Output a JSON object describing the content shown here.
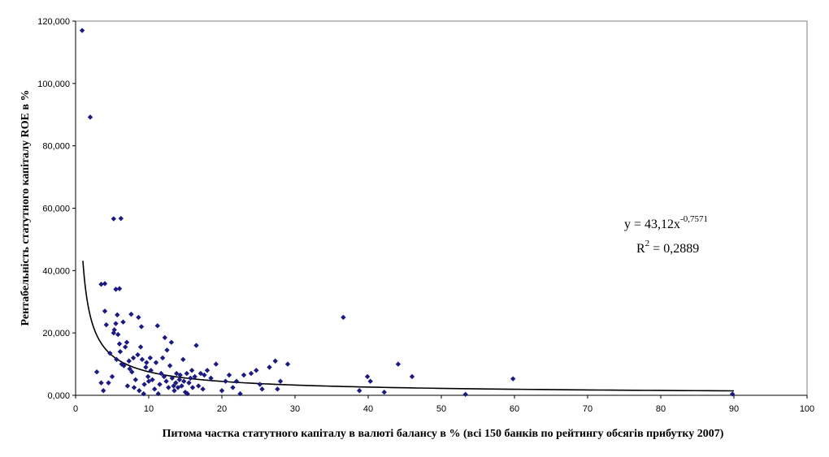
{
  "chart_data": {
    "type": "scatter",
    "title": "",
    "xlabel": "Питома частка статутного капіталу в валюті балансу в % (всі 150 банків по рейтингу обсягів прибутку 2007)",
    "ylabel": "Рентабельність статутного капіталу ROE в %",
    "xlim": [
      0,
      100
    ],
    "ylim": [
      0,
      120000
    ],
    "x_ticks": [
      "0",
      "10",
      "20",
      "30",
      "40",
      "50",
      "60",
      "70",
      "80",
      "90",
      "100"
    ],
    "y_ticks": [
      "0,000",
      "20,000",
      "40,000",
      "60,000",
      "80,000",
      "100,000",
      "120,000"
    ],
    "grid": false,
    "legend": "none",
    "colors": {
      "points": "#1a1a80",
      "trendline": "#000000",
      "axis": "#808080"
    },
    "trendline": {
      "type": "power",
      "coefficient": 43120,
      "exponent": -0.7571,
      "x_start": 1,
      "x_end": 90,
      "equation_main": "y = 43,12x",
      "equation_exponent": "-0,7571",
      "r2_main": "R",
      "r2_exp": "2",
      "r2_value": " = 0,2889"
    },
    "points": [
      [
        0.9,
        117000
      ],
      [
        2.0,
        89200
      ],
      [
        3.5,
        35600
      ],
      [
        4.0,
        35800
      ],
      [
        5.5,
        34000
      ],
      [
        6.0,
        34200
      ],
      [
        5.2,
        56600
      ],
      [
        6.2,
        56700
      ],
      [
        2.9,
        7500
      ],
      [
        3.5,
        4000
      ],
      [
        3.8,
        1500
      ],
      [
        4.0,
        27000
      ],
      [
        4.2,
        22600
      ],
      [
        4.5,
        4000
      ],
      [
        4.7,
        13500
      ],
      [
        5.0,
        6000
      ],
      [
        5.2,
        20000
      ],
      [
        5.3,
        21000
      ],
      [
        5.5,
        23000
      ],
      [
        5.6,
        11500
      ],
      [
        5.7,
        25800
      ],
      [
        5.8,
        19500
      ],
      [
        6.0,
        16500
      ],
      [
        6.1,
        14000
      ],
      [
        6.3,
        10000
      ],
      [
        6.5,
        23500
      ],
      [
        6.6,
        9500
      ],
      [
        6.8,
        15500
      ],
      [
        7.0,
        17000
      ],
      [
        7.1,
        3000
      ],
      [
        7.3,
        11000
      ],
      [
        7.4,
        8500
      ],
      [
        7.6,
        26000
      ],
      [
        7.7,
        7500
      ],
      [
        7.9,
        12000
      ],
      [
        8.0,
        2500
      ],
      [
        8.2,
        5000
      ],
      [
        8.5,
        13000
      ],
      [
        8.6,
        25000
      ],
      [
        8.7,
        1500
      ],
      [
        8.9,
        15500
      ],
      [
        9.0,
        22000
      ],
      [
        9.1,
        11500
      ],
      [
        9.3,
        500
      ],
      [
        9.4,
        3500
      ],
      [
        9.6,
        9000
      ],
      [
        9.7,
        10500
      ],
      [
        9.9,
        6000
      ],
      [
        10.0,
        4500
      ],
      [
        10.2,
        12000
      ],
      [
        10.3,
        8000
      ],
      [
        10.5,
        5000
      ],
      [
        10.8,
        2000
      ],
      [
        11.0,
        10500
      ],
      [
        11.2,
        22300
      ],
      [
        11.3,
        500
      ],
      [
        11.5,
        3500
      ],
      [
        11.7,
        7000
      ],
      [
        11.9,
        12000
      ],
      [
        12.1,
        6000
      ],
      [
        12.2,
        18500
      ],
      [
        12.4,
        4500
      ],
      [
        12.5,
        14500
      ],
      [
        12.7,
        2500
      ],
      [
        12.9,
        9500
      ],
      [
        13.1,
        17000
      ],
      [
        13.2,
        5500
      ],
      [
        13.4,
        3000
      ],
      [
        13.5,
        1500
      ],
      [
        13.7,
        4000
      ],
      [
        13.8,
        7000
      ],
      [
        14.0,
        2500
      ],
      [
        14.2,
        5000
      ],
      [
        14.3,
        6500
      ],
      [
        14.5,
        3000
      ],
      [
        14.7,
        11500
      ],
      [
        14.8,
        4500
      ],
      [
        15.0,
        1000
      ],
      [
        15.2,
        7000
      ],
      [
        15.3,
        500
      ],
      [
        15.5,
        4000
      ],
      [
        15.7,
        5500
      ],
      [
        15.9,
        8000
      ],
      [
        16.0,
        2500
      ],
      [
        16.3,
        6000
      ],
      [
        16.5,
        16000
      ],
      [
        16.8,
        3000
      ],
      [
        17.1,
        7000
      ],
      [
        17.4,
        2000
      ],
      [
        17.6,
        6500
      ],
      [
        18.0,
        8000
      ],
      [
        18.5,
        5500
      ],
      [
        19.2,
        10000
      ],
      [
        20.0,
        1500
      ],
      [
        20.5,
        4500
      ],
      [
        21.0,
        6500
      ],
      [
        21.5,
        2500
      ],
      [
        22.0,
        4500
      ],
      [
        22.5,
        500
      ],
      [
        23.0,
        6500
      ],
      [
        24.0,
        7000
      ],
      [
        24.7,
        8000
      ],
      [
        25.2,
        3500
      ],
      [
        25.5,
        2000
      ],
      [
        26.5,
        9000
      ],
      [
        27.3,
        11000
      ],
      [
        27.6,
        2000
      ],
      [
        28.0,
        4500
      ],
      [
        29.0,
        10000
      ],
      [
        36.6,
        25000
      ],
      [
        38.8,
        1500
      ],
      [
        39.9,
        6000
      ],
      [
        40.3,
        4500
      ],
      [
        42.2,
        1000
      ],
      [
        44.1,
        10000
      ],
      [
        46.0,
        6000
      ],
      [
        53.3,
        300
      ],
      [
        59.8,
        5300
      ],
      [
        89.8,
        400
      ]
    ]
  }
}
